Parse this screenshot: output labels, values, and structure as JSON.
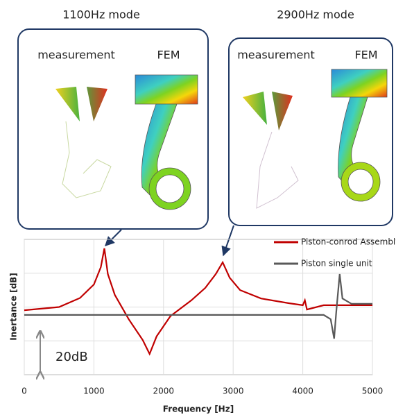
{
  "panels": [
    {
      "title": "1100Hz mode",
      "labels": [
        "measurement",
        "FEM"
      ]
    },
    {
      "title": "2900Hz mode",
      "labels": [
        "measurement",
        "FEM"
      ]
    }
  ],
  "chart_data": {
    "type": "line",
    "xlabel": "Frequency [Hz]",
    "ylabel": "Inertance [dB]",
    "annotation": "20dB",
    "scale_bar": 20,
    "xlim": [
      0,
      5000
    ],
    "xticks": [
      0,
      1000,
      2000,
      3000,
      4000,
      5000
    ],
    "ylim": [
      0,
      60
    ],
    "yticks": [
      15,
      30,
      45
    ],
    "grid": true,
    "series": [
      {
        "name": "Piston-conrod Assembly",
        "color": "#c00000",
        "x": [
          0,
          500,
          800,
          1000,
          1100,
          1150,
          1200,
          1300,
          1500,
          1700,
          1800,
          1900,
          2100,
          2400,
          2600,
          2750,
          2850,
          2950,
          3100,
          3400,
          3800,
          4000,
          4030,
          4060,
          4300,
          4600,
          5000
        ],
        "values": [
          28.6,
          30,
          34,
          40,
          47.7,
          56,
          44.6,
          35.4,
          24.6,
          15.4,
          9.2,
          17,
          26,
          33,
          38.5,
          44.6,
          49.8,
          43,
          37.5,
          33.8,
          31.7,
          30.8,
          33,
          28.9,
          30.8,
          30.8,
          30.8
        ]
      },
      {
        "name": "Piston single unit",
        "color": "#595959",
        "x": [
          0,
          1000,
          2000,
          3000,
          4000,
          4300,
          4400,
          4450,
          4480,
          4530,
          4570,
          4700,
          5000
        ],
        "values": [
          26.5,
          26.5,
          26.5,
          26.5,
          26.5,
          26.5,
          24.6,
          16,
          27.7,
          44.6,
          33.8,
          31.4,
          31.4
        ]
      }
    ]
  }
}
